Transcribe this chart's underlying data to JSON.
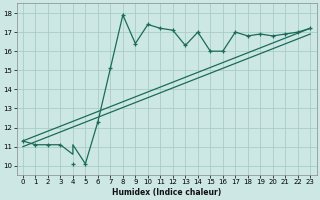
{
  "xlabel": "Humidex (Indice chaleur)",
  "bg_color": "#cde8e4",
  "grid_color": "#a8cdc8",
  "line_color": "#1a6b5a",
  "xlim": [
    -0.5,
    23.5
  ],
  "ylim": [
    9.5,
    18.5
  ],
  "xticks": [
    0,
    1,
    2,
    3,
    4,
    5,
    6,
    7,
    8,
    9,
    10,
    11,
    12,
    13,
    14,
    15,
    16,
    17,
    18,
    19,
    20,
    21,
    22,
    23
  ],
  "yticks": [
    10,
    11,
    12,
    13,
    14,
    15,
    16,
    17,
    18
  ],
  "jagged_x": [
    0,
    1,
    2,
    3,
    4,
    4,
    5,
    5,
    6,
    7,
    8,
    9,
    10,
    11,
    12,
    13,
    14,
    15,
    16,
    17,
    18,
    19,
    20,
    21,
    22,
    23
  ],
  "jagged_y": [
    11.3,
    11.1,
    11.1,
    11.1,
    10.6,
    11.1,
    10.1,
    10.1,
    12.3,
    15.1,
    17.9,
    16.4,
    17.4,
    17.2,
    17.1,
    16.3,
    17.0,
    16.0,
    16.0,
    17.0,
    16.8,
    16.9,
    16.8,
    16.9,
    17.0,
    17.2
  ],
  "trend1_x": [
    0,
    23
  ],
  "trend1_y": [
    11.3,
    17.2
  ],
  "trend2_x": [
    0,
    23
  ],
  "trend2_y": [
    11.0,
    16.9
  ],
  "marker_x": [
    0,
    1,
    2,
    3,
    4,
    5,
    6,
    7,
    8,
    9,
    10,
    11,
    12,
    13,
    14,
    15,
    16,
    17,
    18,
    19,
    20,
    21,
    22,
    23
  ],
  "marker_y": [
    11.3,
    11.1,
    11.1,
    11.1,
    10.1,
    10.1,
    12.3,
    15.1,
    17.9,
    16.4,
    17.4,
    17.2,
    17.1,
    16.3,
    17.0,
    16.0,
    16.0,
    17.0,
    16.8,
    16.9,
    16.8,
    16.9,
    17.0,
    17.2
  ]
}
